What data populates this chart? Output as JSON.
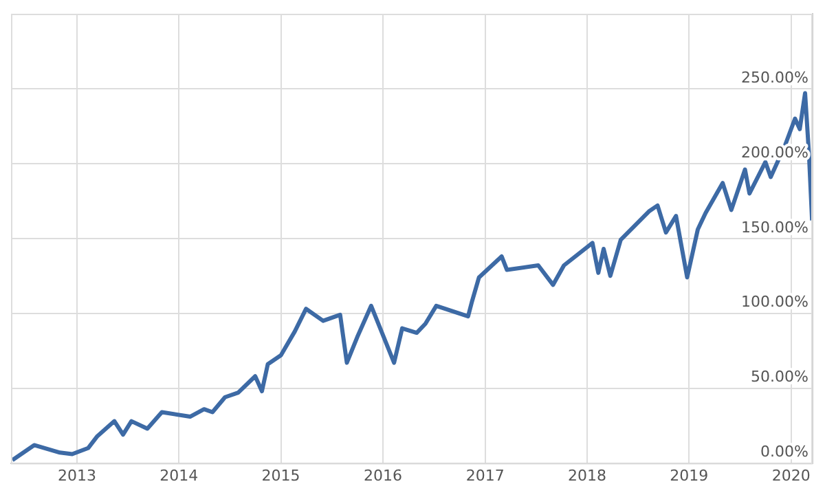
{
  "chart_data": {
    "type": "line",
    "x": [
      "2012-05-15",
      "2012-08-01",
      "2012-11-01",
      "2012-12-15",
      "2013-02-10",
      "2013-03-15",
      "2013-05-15",
      "2013-06-15",
      "2013-07-15",
      "2013-09-10",
      "2013-11-01",
      "2014-02-10",
      "2014-04-01",
      "2014-05-01",
      "2014-06-15",
      "2014-08-01",
      "2014-10-01",
      "2014-10-25",
      "2014-11-15",
      "2015-01-01",
      "2015-02-20",
      "2015-04-01",
      "2015-06-01",
      "2015-08-01",
      "2015-08-25",
      "2015-10-01",
      "2015-11-20",
      "2016-02-10",
      "2016-03-10",
      "2016-05-01",
      "2016-06-01",
      "2016-07-10",
      "2016-11-01",
      "2016-11-15",
      "2016-12-10",
      "2017-03-01",
      "2017-03-20",
      "2017-07-10",
      "2017-09-01",
      "2017-10-10",
      "2018-01-20",
      "2018-02-10",
      "2018-03-01",
      "2018-03-25",
      "2018-05-01",
      "2018-08-10",
      "2018-09-10",
      "2018-10-10",
      "2018-11-15",
      "2018-12-25",
      "2019-02-01",
      "2019-03-01",
      "2019-05-01",
      "2019-06-01",
      "2019-07-20",
      "2019-08-05",
      "2019-10-01",
      "2019-10-20",
      "2019-12-10",
      "2020-01-15",
      "2020-02-01",
      "2020-02-20",
      "2020-03-05",
      "2020-03-16"
    ],
    "series": [
      {
        "color": "#3d6aa5",
        "values": [
          2,
          12,
          7,
          6,
          10,
          18,
          28,
          19,
          28,
          23,
          34,
          31,
          36,
          34,
          44,
          47,
          58,
          48,
          66,
          72,
          88,
          103,
          95,
          99,
          67,
          84,
          105,
          67,
          90,
          87,
          93,
          105,
          98,
          108,
          124,
          138,
          129,
          132,
          119,
          132,
          147,
          127,
          143,
          125,
          149,
          168,
          172,
          154,
          165,
          124,
          156,
          167,
          187,
          169,
          196,
          180,
          201,
          191,
          212,
          230,
          223,
          247,
          206,
          162
        ]
      }
    ],
    "xlim": [
      "2012-05-10",
      "2020-03-18"
    ],
    "xticks": [
      "2013",
      "2014",
      "2015",
      "2016",
      "2017",
      "2018",
      "2019",
      "2020"
    ],
    "ylim": [
      0,
      300
    ],
    "yticks": [
      {
        "value": 0,
        "label": "0.00%"
      },
      {
        "value": 50,
        "label": "50.00%"
      },
      {
        "value": 100,
        "label": "100.00%"
      },
      {
        "value": 150,
        "label": "150.00%"
      },
      {
        "value": 200,
        "label": "200.00%"
      },
      {
        "value": 250,
        "label": "250.00%"
      }
    ],
    "grid": true,
    "legend": false,
    "marker": "none",
    "line_style": "solid"
  }
}
